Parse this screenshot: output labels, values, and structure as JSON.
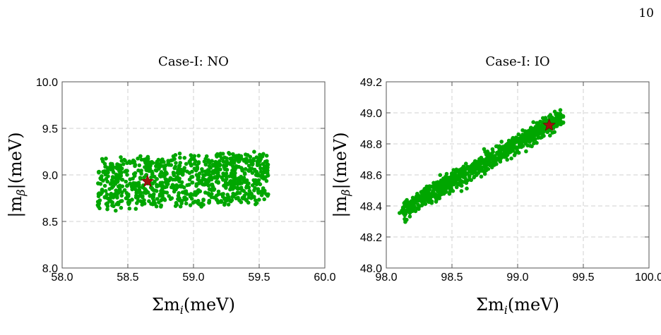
{
  "page": {
    "number": "10"
  },
  "colors": {
    "points": "#00a600",
    "marker": "#a01010"
  },
  "chart_data": [
    {
      "type": "scatter",
      "title": "Case-I: NO",
      "xlabel": "Σm_i(meV)",
      "ylabel": "|m_β|(meV)",
      "xlim": [
        58.0,
        60.0
      ],
      "ylim": [
        8.0,
        10.0
      ],
      "xticks": [
        "58.0",
        "58.5",
        "59.0",
        "59.5",
        "60.0"
      ],
      "yticks": [
        "8.0",
        "8.5",
        "9.0",
        "9.5",
        "10.0"
      ],
      "grid": true,
      "point_cloud": {
        "x_range": [
          58.27,
          59.57
        ],
        "y_center": 8.9,
        "y_spread": 0.3,
        "count": 900
      },
      "best_fit": {
        "x": 58.65,
        "y": 8.93
      }
    },
    {
      "type": "scatter",
      "title": "Case-I: IO",
      "xlabel": "Σm_i(meV)",
      "ylabel": "|m_β|(meV)",
      "xlim": [
        98.0,
        100.0
      ],
      "ylim": [
        48.0,
        49.2
      ],
      "xticks": [
        "98.0",
        "98.5",
        "99.0",
        "99.5",
        "100.0"
      ],
      "yticks": [
        "48.0",
        "48.2",
        "48.4",
        "48.6",
        "48.8",
        "49.0",
        "49.2"
      ],
      "grid": true,
      "point_cloud": {
        "x_range": [
          98.12,
          99.34
        ],
        "line_start": [
          98.12,
          48.37
        ],
        "line_end": [
          99.34,
          48.97
        ],
        "width": 0.03,
        "count": 900
      },
      "best_fit": {
        "x": 99.24,
        "y": 48.92
      }
    }
  ]
}
